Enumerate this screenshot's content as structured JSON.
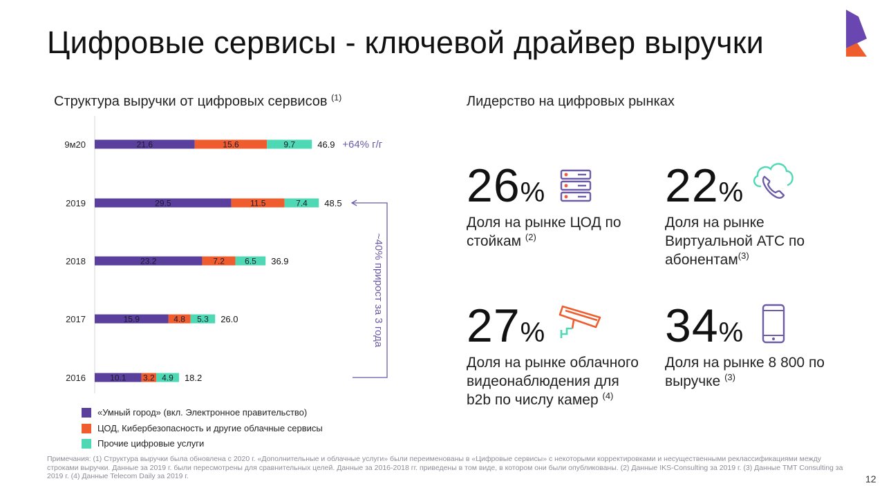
{
  "title": "Цифровые сервисы - ключевой драйвер выручки",
  "left_subtitle": "Структура выручки от цифровых сервисов",
  "left_subtitle_ref": "(1)",
  "right_subtitle": "Лидерство на цифровых рынках",
  "chart_data": {
    "type": "bar",
    "orientation": "horizontal",
    "stacked": true,
    "categories": [
      "9м20",
      "2019",
      "2018",
      "2017",
      "2016"
    ],
    "series": [
      {
        "name": "«Умный город» (вкл. Электронное правительство)",
        "color": "#5b3f9c",
        "values": [
          21.6,
          29.5,
          23.2,
          15.9,
          10.1
        ]
      },
      {
        "name": "ЦОД, Кибербезопасность и другие облачные сервисы",
        "color": "#ef5d2f",
        "values": [
          15.6,
          11.5,
          7.2,
          4.8,
          3.2
        ]
      },
      {
        "name": "Прочие цифровые услуги",
        "color": "#4fd8b4",
        "values": [
          9.7,
          7.4,
          6.5,
          5.3,
          4.9
        ]
      }
    ],
    "totals": [
      "46.9",
      "48.5",
      "36.9",
      "26.0",
      "18.2"
    ],
    "growth_label": "+64% г/г",
    "bracket_label": "~40% прирост за 3 года",
    "legend_position": "bottom-left"
  },
  "stats": [
    {
      "number": "26",
      "unit": "%",
      "desc_lines": [
        "Доля на рынке ЦОД по",
        "стойкам"
      ],
      "ref": "(2)",
      "icon": "server-icon"
    },
    {
      "number": "22",
      "unit": "%",
      "desc_lines": [
        "Доля на рынке",
        "Виртуальной АТС по",
        "абонентам"
      ],
      "ref": "(3)",
      "icon": "cloud-phone-icon"
    },
    {
      "number": "27",
      "unit": "%",
      "desc_lines": [
        "Доля на рынке облачного",
        "видеонаблюдения для",
        "b2b по числу камер"
      ],
      "ref": "(4)",
      "icon": "cctv-camera-icon"
    },
    {
      "number": "34",
      "unit": "%",
      "desc_lines": [
        "Доля на рынке 8 800 по",
        "выручке"
      ],
      "ref": "(3)",
      "icon": "smartphone-icon"
    }
  ],
  "notes": "Примечания: (1) Структура выручки была обновлена с 2020 г. «Дополнительные и облачные услуги» были переименованы в «Цифровые сервисы» с некоторыми корректировками и несущественными реклассификациями между строками выручки. Данные за 2019 г. были пересмотрены для сравнительных целей. Данные за 2016-2018 гг. приведены в том виде, в котором они были опубликованы. (2) Данные IKS-Consulting за 2019 г. (3) Данные TMT Consulting за 2019 г. (4) Данные Telecom Daily за 2019 г.",
  "page_number": "12",
  "colors": {
    "accent": "#5b3f9c",
    "orange": "#ef5d2f",
    "teal": "#4fd8b4",
    "bracket": "#6b5aa6"
  }
}
